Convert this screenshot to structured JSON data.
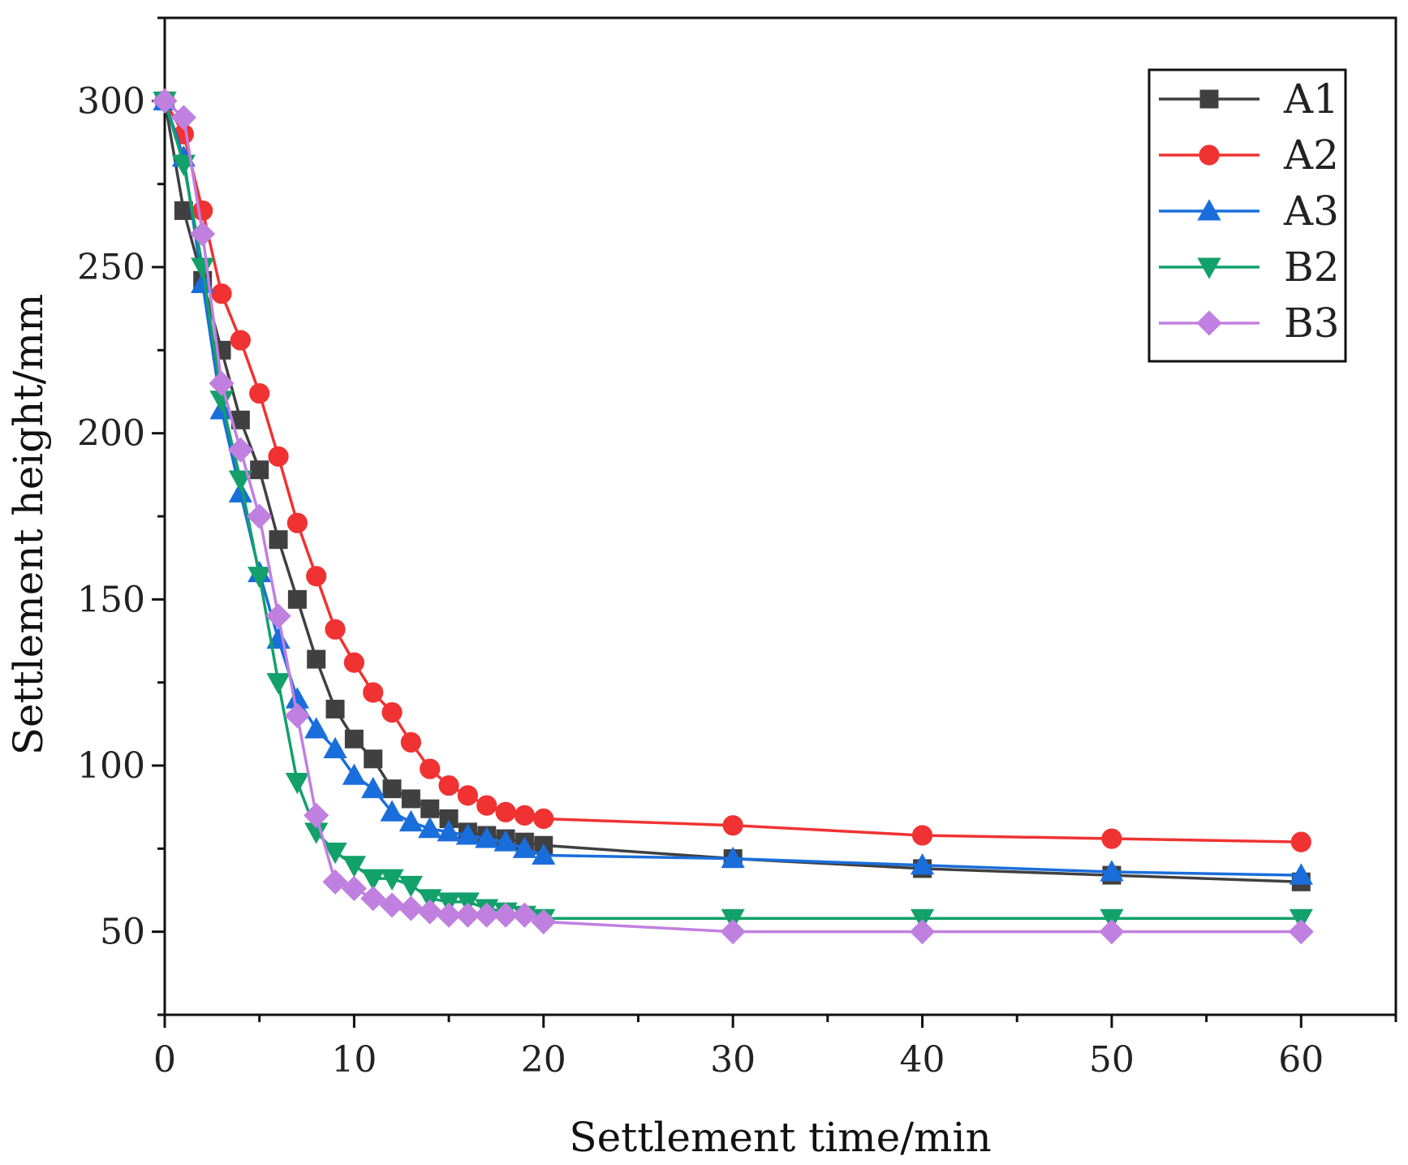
{
  "chart_data": {
    "type": "line",
    "title": "",
    "xlabel": "Settlement time/min",
    "ylabel": "Settlement height/mm",
    "xlim": [
      0,
      65
    ],
    "ylim": [
      25,
      325
    ],
    "xticks": [
      0,
      10,
      20,
      30,
      40,
      50,
      60
    ],
    "yticks": [
      50,
      100,
      150,
      200,
      250,
      300
    ],
    "grid": false,
    "legend_position": "top-right",
    "x": [
      0,
      1,
      2,
      3,
      4,
      5,
      6,
      7,
      8,
      9,
      10,
      11,
      12,
      13,
      14,
      15,
      16,
      17,
      18,
      19,
      20,
      30,
      40,
      50,
      60
    ],
    "series": [
      {
        "name": "A1",
        "color": "#404040",
        "marker": "square",
        "values": [
          300,
          267,
          246,
          225,
          204,
          189,
          168,
          150,
          132,
          117,
          108,
          102,
          93,
          90,
          87,
          84,
          80,
          79,
          78,
          77,
          76,
          72,
          69,
          67,
          65
        ]
      },
      {
        "name": "A2",
        "color": "#f03232",
        "marker": "circle",
        "values": [
          300,
          290,
          267,
          242,
          228,
          212,
          193,
          173,
          157,
          141,
          131,
          122,
          116,
          107,
          99,
          94,
          91,
          88,
          86,
          85,
          84,
          82,
          79,
          78,
          77
        ]
      },
      {
        "name": "A3",
        "color": "#1a6edb",
        "marker": "triangle-up",
        "values": [
          300,
          283,
          245,
          207,
          182,
          158,
          138,
          120,
          111,
          105,
          97,
          93,
          86,
          83,
          81,
          80,
          79,
          78,
          77,
          75,
          73,
          72,
          70,
          68,
          67
        ]
      },
      {
        "name": "B2",
        "color": "#12a06b",
        "marker": "triangle-down",
        "values": [
          300,
          281,
          250,
          210,
          186,
          157,
          125,
          95,
          80,
          74,
          70,
          66,
          66,
          64,
          60,
          59,
          59,
          57,
          56,
          55,
          54,
          54,
          54,
          54,
          54
        ]
      },
      {
        "name": "B3",
        "color": "#c080e0",
        "marker": "diamond",
        "values": [
          300,
          295,
          260,
          215,
          195,
          175,
          145,
          115,
          85,
          65,
          63,
          60,
          58,
          57,
          56,
          55,
          55,
          55,
          55,
          55,
          53,
          50,
          50,
          50,
          50
        ]
      }
    ]
  }
}
